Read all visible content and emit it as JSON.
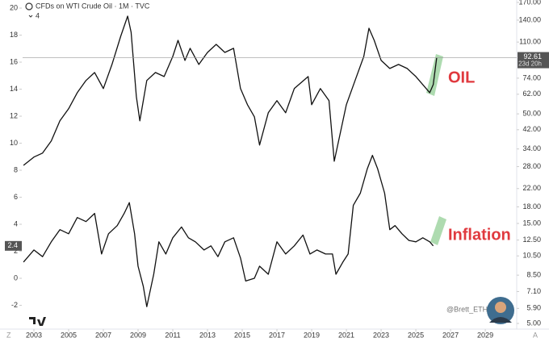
{
  "chart_data": {
    "type": "line",
    "title": "CFDs on WTI Crude Oil · 1M · TVC",
    "legend_toggle": "4",
    "countdown": "23d 20h",
    "watermark": "@Brett_ETH",
    "scale_buttons": [
      "Z",
      "A"
    ],
    "grid": false,
    "xlim": [
      2002.35,
      2030.81
    ],
    "xticks": [
      2003,
      2005,
      2007,
      2009,
      2011,
      2013,
      2015,
      2017,
      2019,
      2021,
      2023,
      2025,
      2027,
      2029
    ],
    "ylim": [
      -3.76,
      20.6
    ],
    "yticks": [
      -2,
      0,
      2,
      4,
      6,
      8,
      10,
      12,
      14,
      16,
      18,
      20
    ],
    "y2lim": [
      4.7,
      174.6
    ],
    "y2log": true,
    "y2ticks": [
      {
        "value": 170,
        "label": "170.00"
      },
      {
        "value": 140,
        "label": "140.00"
      },
      {
        "value": 110,
        "label": "110.00"
      },
      {
        "value": 74,
        "label": "74.00"
      },
      {
        "value": 62,
        "label": "62.00"
      },
      {
        "value": 50,
        "label": "50.00"
      },
      {
        "value": 42,
        "label": "42.00"
      },
      {
        "value": 34,
        "label": "34.00"
      },
      {
        "value": 28,
        "label": "28.00"
      },
      {
        "value": 22,
        "label": "22.00"
      },
      {
        "value": 18,
        "label": "18.00"
      },
      {
        "value": 15,
        "label": "15.00"
      },
      {
        "value": 12.5,
        "label": "12.50"
      },
      {
        "value": 10.5,
        "label": "10.50"
      },
      {
        "value": 8.5,
        "label": "8.50"
      },
      {
        "value": 7.1,
        "label": "7.10"
      },
      {
        "value": 5.9,
        "label": "5.90"
      },
      {
        "value": 5,
        "label": "5.00"
      }
    ],
    "series": [
      {
        "name": "OIL",
        "color": "#111111",
        "label_color": "#e0393e",
        "axis": "y2",
        "x": [
          2002.4,
          2003,
          2003.5,
          2004,
          2004.5,
          2005,
          2005.5,
          2006,
          2006.5,
          2007,
          2007.5,
          2008,
          2008.4,
          2008.6,
          2008.9,
          2009.1,
          2009.5,
          2010,
          2010.5,
          2011,
          2011.3,
          2011.7,
          2012,
          2012.5,
          2013,
          2013.5,
          2014,
          2014.5,
          2014.9,
          2015.3,
          2015.7,
          2016,
          2016.5,
          2017,
          2017.5,
          2018,
          2018.8,
          2019,
          2019.5,
          2020,
          2020.3,
          2020.7,
          2021,
          2021.5,
          2022,
          2022.3,
          2022.6,
          2023,
          2023.5,
          2024,
          2024.5,
          2025,
          2025.4,
          2025.8,
          2026.0,
          2026.2
        ],
        "values": [
          28.4,
          31.1,
          32.5,
          37.1,
          46.3,
          52.9,
          63.1,
          72.1,
          78.7,
          66.0,
          86.0,
          117.2,
          146.2,
          122.5,
          60.4,
          46.3,
          72.1,
          78.7,
          75.3,
          93.9,
          112.1,
          89.9,
          102.7,
          86.0,
          98.2,
          107.3,
          98.2,
          102.7,
          66.0,
          55.3,
          48.4,
          35.5,
          50.6,
          57.8,
          50.6,
          66.0,
          75.3,
          55.3,
          66.0,
          57.8,
          29.7,
          42.4,
          55.3,
          72.1,
          93.9,
          128.1,
          112.1,
          89.9,
          82.3,
          86.0,
          82.3,
          75.3,
          68.9,
          63.1,
          68.9,
          92.61
        ]
      },
      {
        "name": "Inflation",
        "color": "#111111",
        "label_color": "#e0393e",
        "x": [
          2002.4,
          2003,
          2003.5,
          2004,
          2004.5,
          2005,
          2005.5,
          2006,
          2006.5,
          2006.9,
          2007.3,
          2007.8,
          2008.2,
          2008.5,
          2008.8,
          2009,
          2009.3,
          2009.5,
          2009.9,
          2010.2,
          2010.6,
          2011,
          2011.5,
          2011.9,
          2012.3,
          2012.8,
          2013.2,
          2013.6,
          2014,
          2014.5,
          2014.9,
          2015.2,
          2015.7,
          2016,
          2016.5,
          2017,
          2017.5,
          2018,
          2018.5,
          2018.9,
          2019.3,
          2019.8,
          2020.2,
          2020.4,
          2020.8,
          2021.1,
          2021.4,
          2021.8,
          2022.2,
          2022.5,
          2022.8,
          2023.2,
          2023.5,
          2023.8,
          2024.2,
          2024.6,
          2025,
          2025.4,
          2025.8,
          2026.0
        ],
        "values": [
          1.2,
          2.1,
          1.6,
          2.7,
          3.6,
          3.3,
          4.5,
          4.2,
          4.8,
          1.8,
          3.3,
          3.9,
          4.8,
          5.6,
          3.3,
          0.9,
          -0.6,
          -2.1,
          0.3,
          2.7,
          1.8,
          3.0,
          3.8,
          3.0,
          2.7,
          2.1,
          2.4,
          1.6,
          2.7,
          3.0,
          1.5,
          -0.2,
          0.0,
          0.9,
          0.3,
          2.7,
          1.8,
          2.4,
          3.2,
          1.8,
          2.1,
          1.8,
          1.8,
          0.3,
          1.2,
          1.8,
          5.4,
          6.3,
          8.1,
          9.1,
          8.1,
          6.3,
          3.6,
          3.9,
          3.3,
          2.8,
          2.7,
          3.0,
          2.7,
          2.4
        ]
      }
    ]
  }
}
